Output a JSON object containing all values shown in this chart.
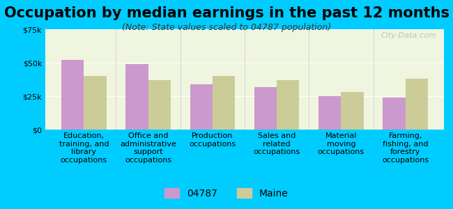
{
  "title": "Occupation by median earnings in the past 12 months",
  "subtitle": "(Note: State values scaled to 04787 population)",
  "categories": [
    "Education,\ntraining, and\nlibrary\noccupations",
    "Office and\nadministrative\nsupport\noccupations",
    "Production\noccupations",
    "Sales and\nrelated\noccupations",
    "Material\nmoving\noccupations",
    "Farming,\nfishing, and\nforestry\noccupations"
  ],
  "values_04787": [
    52000,
    49000,
    34000,
    32000,
    25000,
    24000
  ],
  "values_maine": [
    40000,
    37000,
    40000,
    37000,
    28000,
    38000
  ],
  "color_04787": "#cc99cc",
  "color_maine": "#cccc99",
  "ylim": [
    0,
    75000
  ],
  "yticks": [
    0,
    25000,
    50000,
    75000
  ],
  "ytick_labels": [
    "$0",
    "$25k",
    "$50k",
    "$75k"
  ],
  "legend_04787": "04787",
  "legend_maine": "Maine",
  "background_outer": "#00ccff",
  "background_plot": "#f0f5e0",
  "watermark": "City-Data.com",
  "title_fontsize": 15,
  "subtitle_fontsize": 9,
  "tick_fontsize": 8,
  "legend_fontsize": 10
}
